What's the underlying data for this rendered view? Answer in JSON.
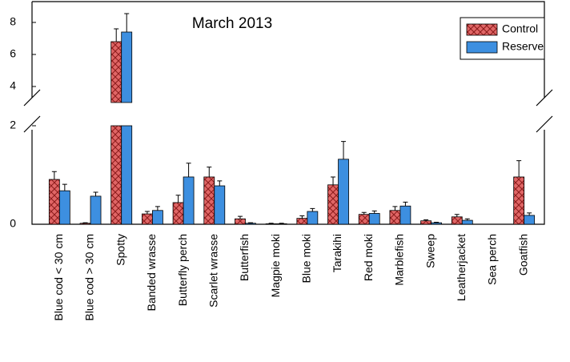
{
  "chart_data": {
    "type": "bar",
    "title": "March 2013",
    "categories": [
      "Blue cod < 30 cm",
      "Blue cod > 30 cm",
      "Spotty",
      "Banded wrasse",
      "Butterfly perch",
      "Scarlet wrasse",
      "Butterfish",
      "Magpie moki",
      "Blue moki",
      "Tarakihi",
      "Red moki",
      "Marblefish",
      "Sweep",
      "Leatherjacket",
      "Sea perch",
      "Goatfish"
    ],
    "series": [
      {
        "name": "Control",
        "color": "#e06666",
        "hatch": "cross",
        "values": [
          0.91,
          0.02,
          6.8,
          0.21,
          0.44,
          0.96,
          0.11,
          0.01,
          0.12,
          0.8,
          0.2,
          0.28,
          0.07,
          0.15,
          0,
          0.96
        ],
        "errors": [
          0.16,
          0.01,
          0.8,
          0.05,
          0.15,
          0.2,
          0.05,
          0.01,
          0.05,
          0.16,
          0.04,
          0.08,
          0.02,
          0.05,
          0,
          0.33
        ]
      },
      {
        "name": "Reserve",
        "color": "#3d8fe0",
        "values": [
          0.68,
          0.57,
          7.4,
          0.28,
          0.96,
          0.78,
          0.02,
          0.01,
          0.26,
          1.32,
          0.22,
          0.37,
          0.03,
          0.08,
          0,
          0.18
        ],
        "errors": [
          0.13,
          0.08,
          1.15,
          0.08,
          0.28,
          0.1,
          0.01,
          0.01,
          0.06,
          0.36,
          0.05,
          0.08,
          0.01,
          0.03,
          0,
          0.05
        ]
      }
    ],
    "ylim": [
      0,
      8.6
    ],
    "yticks": [
      0,
      2,
      4,
      6,
      8
    ],
    "axis_break": [
      2,
      3
    ],
    "legend": "top-right"
  }
}
